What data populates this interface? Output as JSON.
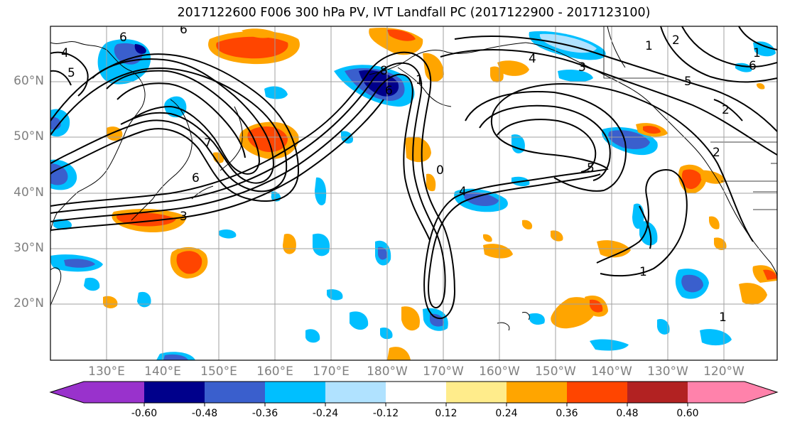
{
  "title": "2017122600 F006 300 hPa PV, IVT Landfall PC (2017122900 - 2017123100)",
  "lat_labels": [
    "60°N",
    "50°N",
    "40°N",
    "30°N",
    "20°N"
  ],
  "lon_labels": [
    "130°E",
    "140°E",
    "150°E",
    "160°E",
    "170°E",
    "180°W",
    "170°W",
    "160°W",
    "150°W",
    "140°W",
    "130°W",
    "120°W"
  ],
  "pv_contour_labels": [
    "6",
    "4",
    "5",
    "6",
    "7",
    "6",
    "3",
    "8",
    "6",
    "1",
    "0",
    "4",
    "5",
    "4",
    "3",
    "1",
    "1",
    "2",
    "5",
    "6",
    "2",
    "2",
    "1",
    "1"
  ],
  "colorbar": {
    "tick_labels": [
      "-0.60",
      "-0.48",
      "-0.36",
      "-0.24",
      "-0.12",
      "0.12",
      "0.24",
      "0.36",
      "0.48",
      "0.60"
    ],
    "colors": [
      "#9932cc",
      "#00008b",
      "#3a5fcd",
      "#00bfff",
      "#b0e2ff",
      "#ffffff",
      "#ffec8b",
      "#ffa500",
      "#ff4500",
      "#b22222",
      "#ff82ab"
    ]
  }
}
